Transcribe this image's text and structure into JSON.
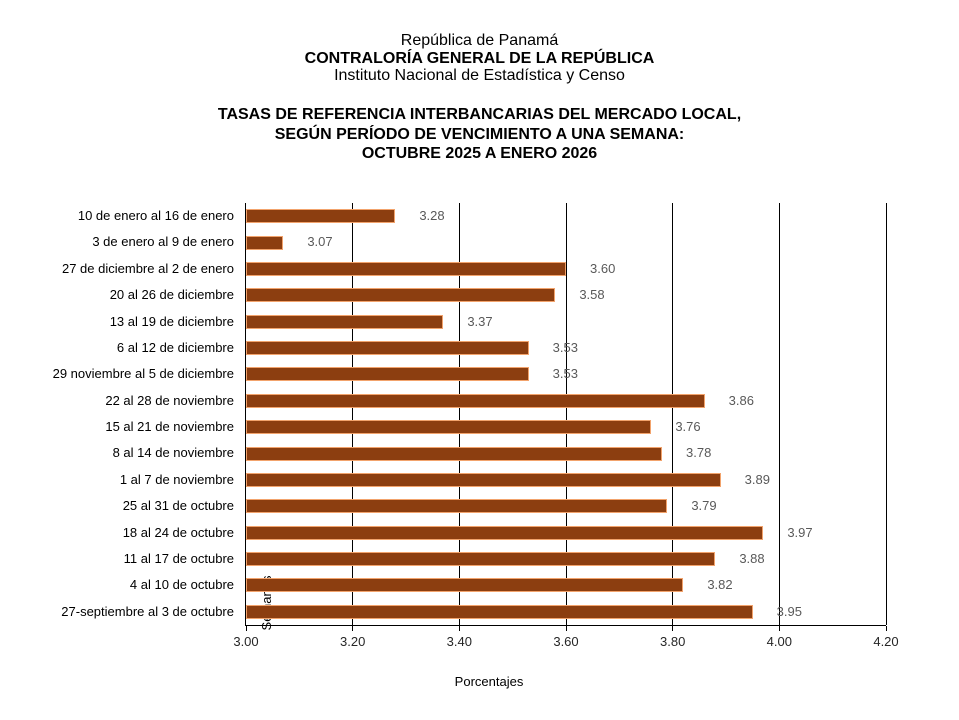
{
  "header": {
    "org_line1": "República de Panamá",
    "org_line2": "CONTRALORÍA GENERAL DE LA REPÚBLICA",
    "org_line3": "Instituto Nacional de Estadística y Censo"
  },
  "chart_title": {
    "line1": "TASAS DE REFERENCIA INTERBANCARIAS DEL MERCADO LOCAL,",
    "line2": "SEGÚN PERÍODO DE VENCIMIENTO A UNA SEMANA:",
    "line3": "OCTUBRE 2025 A ENERO 2026"
  },
  "chart_data": {
    "type": "bar",
    "orientation": "horizontal",
    "title": "TASAS DE REFERENCIA INTERBANCARIAS DEL MERCADO LOCAL, SEGÚN PERÍODO DE VENCIMIENTO A UNA SEMANA: OCTUBRE 2025 A ENERO 2026",
    "xlabel": "Porcentajes",
    "ylabel": "Semanas",
    "xlim": [
      3.0,
      4.2
    ],
    "xtick_step": 0.2,
    "xtick_labels": [
      "3.00",
      "3.20",
      "3.40",
      "3.60",
      "3.80",
      "4.00",
      "4.20"
    ],
    "grid": true,
    "legend": false,
    "categories": [
      "10 de enero al 16 de enero",
      "3 de enero al 9 de enero",
      "27 de diciembre al 2 de enero",
      "20 al 26 de diciembre",
      "13 al 19 de diciembre",
      "6 al 12 de diciembre",
      "29 noviembre al 5 de diciembre",
      "22 al 28 de noviembre",
      "15 al 21 de noviembre",
      "8 al 14 de noviembre",
      "1 al 7 de noviembre",
      "25 al 31 de octubre",
      "18 al 24 de octubre",
      "11 al 17 de octubre",
      "4 al 10 de octubre",
      "27-septiembre al 3 de octubre"
    ],
    "values": [
      3.28,
      3.07,
      3.6,
      3.58,
      3.37,
      3.53,
      3.53,
      3.86,
      3.76,
      3.78,
      3.89,
      3.79,
      3.97,
      3.88,
      3.82,
      3.95
    ],
    "value_labels": [
      "3.28",
      "3.07",
      "3.60",
      "3.58",
      "3.37",
      "3.53",
      "3.53",
      "3.86",
      "3.76",
      "3.78",
      "3.89",
      "3.79",
      "3.97",
      "3.88",
      "3.82",
      "3.95"
    ]
  },
  "colors": {
    "background": "#FFFFFF",
    "bar_fill": "#8C3E10",
    "bar_border": "#F2A36C",
    "axis_line": "#000000",
    "gridline": "#000000",
    "value_label_text": "#595959",
    "tick_label_text": "#262626"
  }
}
